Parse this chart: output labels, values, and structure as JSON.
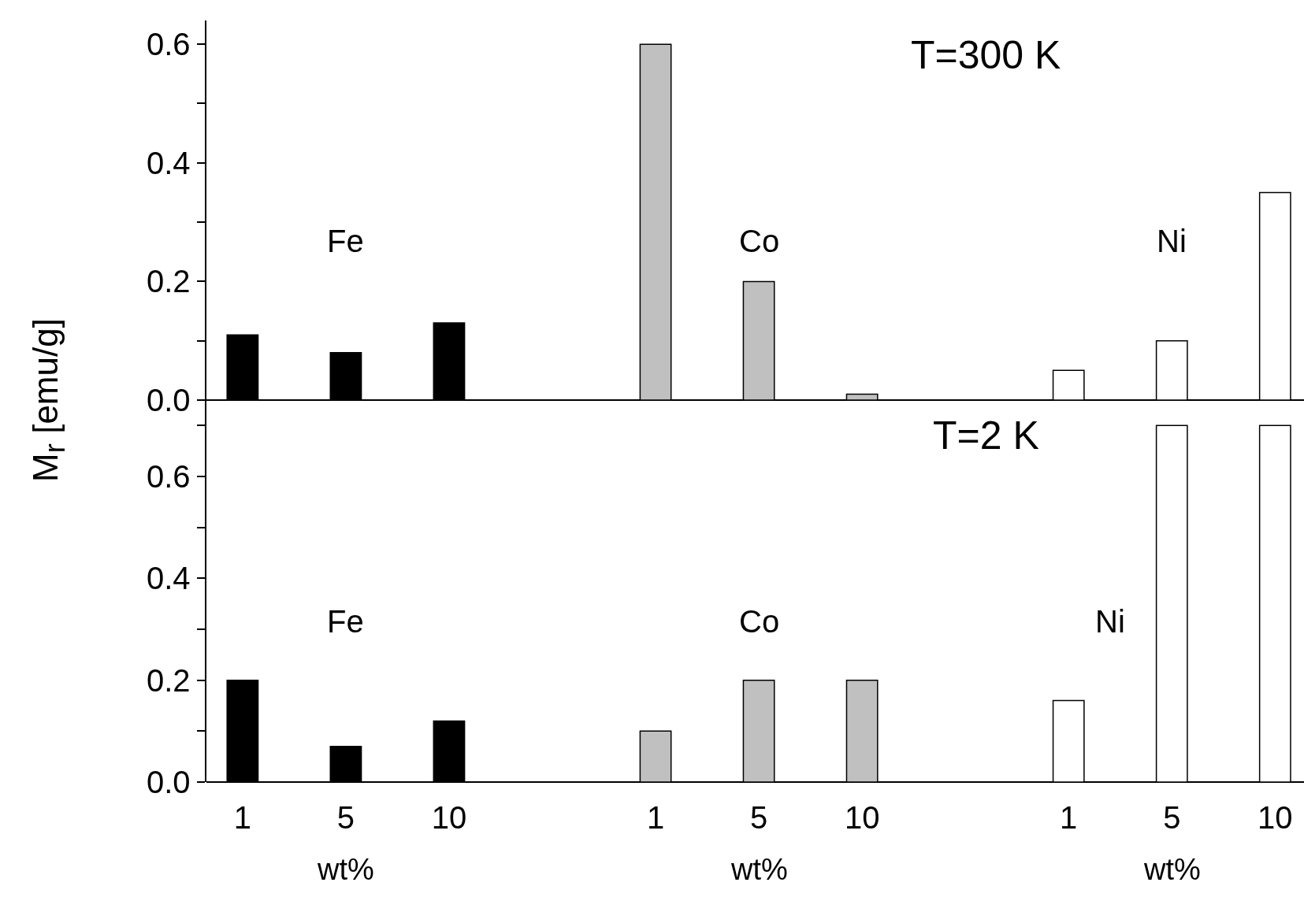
{
  "chart_data": [
    {
      "type": "bar",
      "title": "T=300 K",
      "ylabel": "M$_{r}$ [emu/g]",
      "tick_labels": "y",
      "grid": false,
      "legend": false,
      "categories": [
        "1",
        "5",
        "10",
        null,
        "1",
        "5",
        "10",
        null,
        "1",
        "5",
        "10"
      ],
      "ylim": [
        0,
        0.64
      ],
      "yticks": [
        {
          "value": 0,
          "label": "0.0"
        },
        {
          "value": 0.1,
          "label": null
        },
        {
          "value": 0.2,
          "label": "0.2"
        },
        {
          "value": 0.3,
          "label": null
        },
        {
          "value": 0.4,
          "label": "0.4"
        },
        {
          "value": 0.5,
          "label": null
        },
        {
          "value": 0.6,
          "label": "0.6"
        }
      ],
      "series": [
        {
          "name": "Fe",
          "color": "#000000",
          "values": [
            0.11,
            0.08,
            0.13,
            null,
            null,
            null,
            null,
            null,
            null,
            null,
            null
          ]
        },
        {
          "name": "Co",
          "color": "#c0c0c0",
          "values": [
            null,
            null,
            null,
            null,
            0.6,
            0.2,
            0.01,
            null,
            null,
            null,
            null
          ]
        },
        {
          "name": "Ni",
          "color": "#ffffff",
          "values": [
            null,
            null,
            null,
            null,
            null,
            null,
            null,
            null,
            0.05,
            0.1,
            0.35
          ]
        }
      ]
    },
    {
      "type": "bar",
      "title": "T=2 K",
      "xlabel": "wt%",
      "grid": false,
      "legend": false,
      "categories": [
        "1",
        "5",
        "10",
        null,
        "1",
        "5",
        "10",
        null,
        "1",
        "5",
        "10"
      ],
      "ylim": [
        0,
        0.75
      ],
      "yticks": [
        {
          "value": 0,
          "label": "0.0"
        },
        {
          "value": 0.1,
          "label": null
        },
        {
          "value": 0.2,
          "label": "0.2"
        },
        {
          "value": 0.3,
          "label": null
        },
        {
          "value": 0.4,
          "label": "0.4"
        },
        {
          "value": 0.5,
          "label": null
        },
        {
          "value": 0.6,
          "label": "0.6"
        },
        {
          "value": 0.7,
          "label": null
        }
      ],
      "series": [
        {
          "name": "Fe",
          "color": "#000000",
          "values": [
            0.2,
            0.07,
            0.12,
            null,
            null,
            null,
            null,
            null,
            null,
            null,
            null
          ]
        },
        {
          "name": "Co",
          "color": "#c0c0c0",
          "values": [
            null,
            null,
            null,
            null,
            0.1,
            0.2,
            0.2,
            null,
            null,
            null,
            null
          ]
        },
        {
          "name": "Ni",
          "color": "#ffffff",
          "values": [
            null,
            null,
            null,
            null,
            null,
            null,
            null,
            null,
            0.16,
            0.7,
            0.7
          ]
        }
      ]
    }
  ]
}
